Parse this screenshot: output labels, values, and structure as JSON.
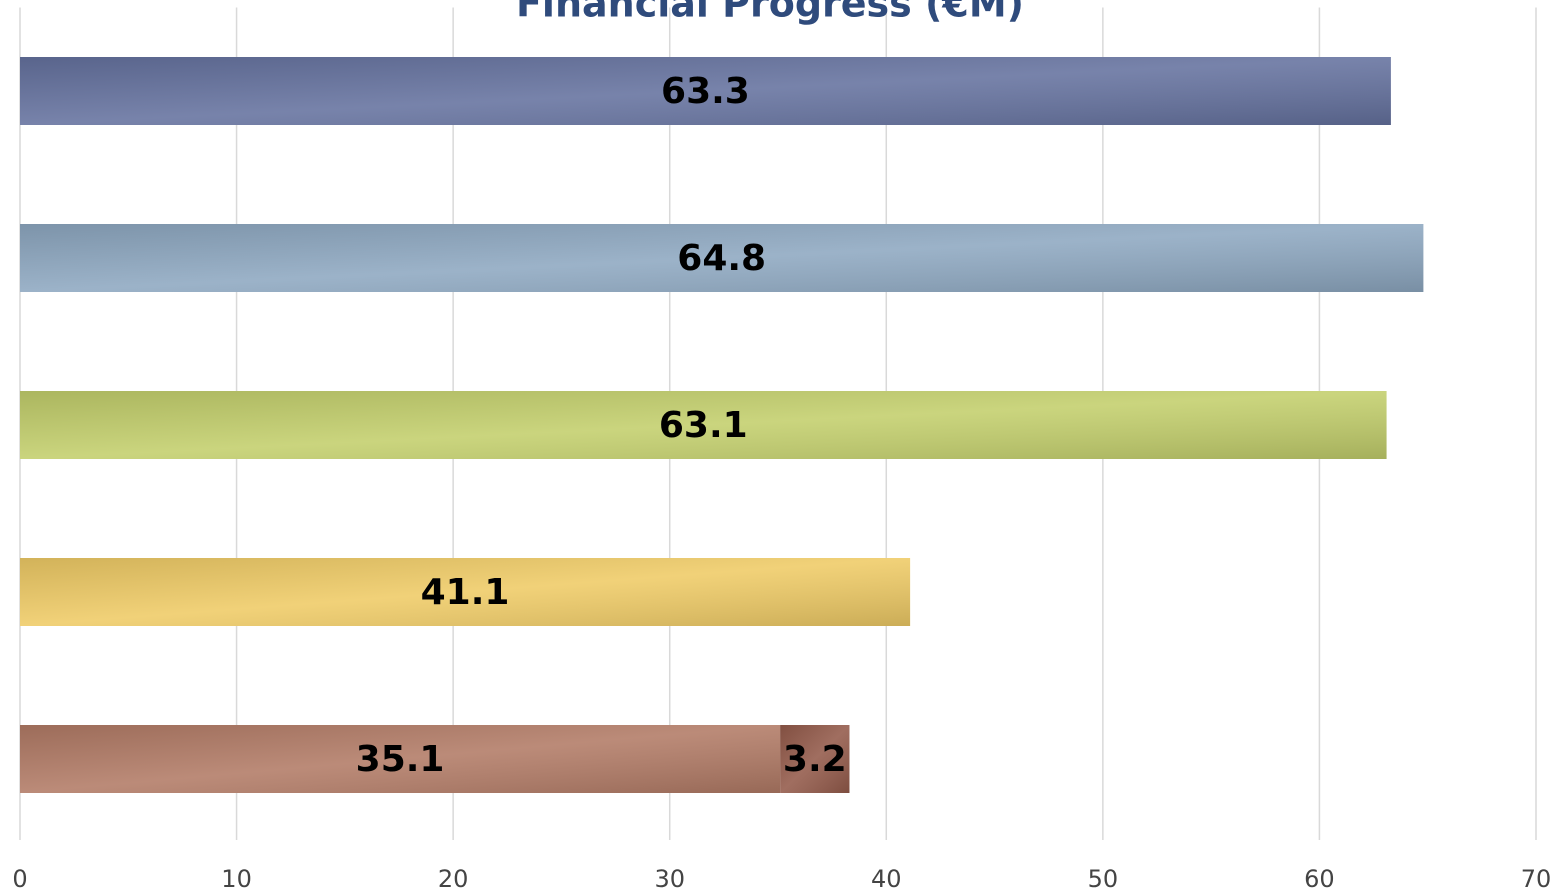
{
  "chart_data": {
    "type": "bar",
    "orientation": "horizontal",
    "title": "Financial Progress (€M)",
    "categories": [
      null,
      null,
      null,
      null,
      null
    ],
    "series": [
      {
        "colors": [
          "#65729f",
          "#8ea8c1",
          "#c3cf6c",
          "#efcb66",
          "#b27b66"
        ],
        "values": [
          63.3,
          64.8,
          63.1,
          41.1,
          35.1
        ]
      },
      {
        "color": "#935a4a",
        "values": [
          null,
          null,
          null,
          null,
          3.2
        ]
      }
    ],
    "xlim": [
      0,
      70
    ],
    "xticks": [
      0,
      10,
      20,
      30,
      40,
      50,
      60,
      70
    ],
    "grid": true
  }
}
